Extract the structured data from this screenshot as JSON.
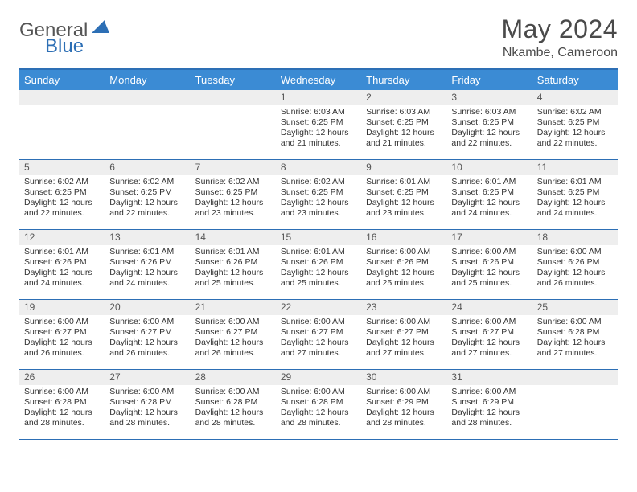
{
  "logo": {
    "word1": "General",
    "word2": "Blue"
  },
  "header": {
    "title": "May 2024",
    "location": "Nkambe, Cameroon"
  },
  "colors": {
    "header_bar": "#3b8bd4",
    "border": "#2d6fb5",
    "daynum_bg": "#eeeeee",
    "text": "#333333",
    "title_text": "#4a4a4a"
  },
  "weekdays": [
    "Sunday",
    "Monday",
    "Tuesday",
    "Wednesday",
    "Thursday",
    "Friday",
    "Saturday"
  ],
  "weeks": [
    [
      {
        "num": "",
        "sunrise": "",
        "sunset": "",
        "daylight": ""
      },
      {
        "num": "",
        "sunrise": "",
        "sunset": "",
        "daylight": ""
      },
      {
        "num": "",
        "sunrise": "",
        "sunset": "",
        "daylight": ""
      },
      {
        "num": "1",
        "sunrise": "Sunrise: 6:03 AM",
        "sunset": "Sunset: 6:25 PM",
        "daylight": "Daylight: 12 hours and 21 minutes."
      },
      {
        "num": "2",
        "sunrise": "Sunrise: 6:03 AM",
        "sunset": "Sunset: 6:25 PM",
        "daylight": "Daylight: 12 hours and 21 minutes."
      },
      {
        "num": "3",
        "sunrise": "Sunrise: 6:03 AM",
        "sunset": "Sunset: 6:25 PM",
        "daylight": "Daylight: 12 hours and 22 minutes."
      },
      {
        "num": "4",
        "sunrise": "Sunrise: 6:02 AM",
        "sunset": "Sunset: 6:25 PM",
        "daylight": "Daylight: 12 hours and 22 minutes."
      }
    ],
    [
      {
        "num": "5",
        "sunrise": "Sunrise: 6:02 AM",
        "sunset": "Sunset: 6:25 PM",
        "daylight": "Daylight: 12 hours and 22 minutes."
      },
      {
        "num": "6",
        "sunrise": "Sunrise: 6:02 AM",
        "sunset": "Sunset: 6:25 PM",
        "daylight": "Daylight: 12 hours and 22 minutes."
      },
      {
        "num": "7",
        "sunrise": "Sunrise: 6:02 AM",
        "sunset": "Sunset: 6:25 PM",
        "daylight": "Daylight: 12 hours and 23 minutes."
      },
      {
        "num": "8",
        "sunrise": "Sunrise: 6:02 AM",
        "sunset": "Sunset: 6:25 PM",
        "daylight": "Daylight: 12 hours and 23 minutes."
      },
      {
        "num": "9",
        "sunrise": "Sunrise: 6:01 AM",
        "sunset": "Sunset: 6:25 PM",
        "daylight": "Daylight: 12 hours and 23 minutes."
      },
      {
        "num": "10",
        "sunrise": "Sunrise: 6:01 AM",
        "sunset": "Sunset: 6:25 PM",
        "daylight": "Daylight: 12 hours and 24 minutes."
      },
      {
        "num": "11",
        "sunrise": "Sunrise: 6:01 AM",
        "sunset": "Sunset: 6:25 PM",
        "daylight": "Daylight: 12 hours and 24 minutes."
      }
    ],
    [
      {
        "num": "12",
        "sunrise": "Sunrise: 6:01 AM",
        "sunset": "Sunset: 6:26 PM",
        "daylight": "Daylight: 12 hours and 24 minutes."
      },
      {
        "num": "13",
        "sunrise": "Sunrise: 6:01 AM",
        "sunset": "Sunset: 6:26 PM",
        "daylight": "Daylight: 12 hours and 24 minutes."
      },
      {
        "num": "14",
        "sunrise": "Sunrise: 6:01 AM",
        "sunset": "Sunset: 6:26 PM",
        "daylight": "Daylight: 12 hours and 25 minutes."
      },
      {
        "num": "15",
        "sunrise": "Sunrise: 6:01 AM",
        "sunset": "Sunset: 6:26 PM",
        "daylight": "Daylight: 12 hours and 25 minutes."
      },
      {
        "num": "16",
        "sunrise": "Sunrise: 6:00 AM",
        "sunset": "Sunset: 6:26 PM",
        "daylight": "Daylight: 12 hours and 25 minutes."
      },
      {
        "num": "17",
        "sunrise": "Sunrise: 6:00 AM",
        "sunset": "Sunset: 6:26 PM",
        "daylight": "Daylight: 12 hours and 25 minutes."
      },
      {
        "num": "18",
        "sunrise": "Sunrise: 6:00 AM",
        "sunset": "Sunset: 6:26 PM",
        "daylight": "Daylight: 12 hours and 26 minutes."
      }
    ],
    [
      {
        "num": "19",
        "sunrise": "Sunrise: 6:00 AM",
        "sunset": "Sunset: 6:27 PM",
        "daylight": "Daylight: 12 hours and 26 minutes."
      },
      {
        "num": "20",
        "sunrise": "Sunrise: 6:00 AM",
        "sunset": "Sunset: 6:27 PM",
        "daylight": "Daylight: 12 hours and 26 minutes."
      },
      {
        "num": "21",
        "sunrise": "Sunrise: 6:00 AM",
        "sunset": "Sunset: 6:27 PM",
        "daylight": "Daylight: 12 hours and 26 minutes."
      },
      {
        "num": "22",
        "sunrise": "Sunrise: 6:00 AM",
        "sunset": "Sunset: 6:27 PM",
        "daylight": "Daylight: 12 hours and 27 minutes."
      },
      {
        "num": "23",
        "sunrise": "Sunrise: 6:00 AM",
        "sunset": "Sunset: 6:27 PM",
        "daylight": "Daylight: 12 hours and 27 minutes."
      },
      {
        "num": "24",
        "sunrise": "Sunrise: 6:00 AM",
        "sunset": "Sunset: 6:27 PM",
        "daylight": "Daylight: 12 hours and 27 minutes."
      },
      {
        "num": "25",
        "sunrise": "Sunrise: 6:00 AM",
        "sunset": "Sunset: 6:28 PM",
        "daylight": "Daylight: 12 hours and 27 minutes."
      }
    ],
    [
      {
        "num": "26",
        "sunrise": "Sunrise: 6:00 AM",
        "sunset": "Sunset: 6:28 PM",
        "daylight": "Daylight: 12 hours and 28 minutes."
      },
      {
        "num": "27",
        "sunrise": "Sunrise: 6:00 AM",
        "sunset": "Sunset: 6:28 PM",
        "daylight": "Daylight: 12 hours and 28 minutes."
      },
      {
        "num": "28",
        "sunrise": "Sunrise: 6:00 AM",
        "sunset": "Sunset: 6:28 PM",
        "daylight": "Daylight: 12 hours and 28 minutes."
      },
      {
        "num": "29",
        "sunrise": "Sunrise: 6:00 AM",
        "sunset": "Sunset: 6:28 PM",
        "daylight": "Daylight: 12 hours and 28 minutes."
      },
      {
        "num": "30",
        "sunrise": "Sunrise: 6:00 AM",
        "sunset": "Sunset: 6:29 PM",
        "daylight": "Daylight: 12 hours and 28 minutes."
      },
      {
        "num": "31",
        "sunrise": "Sunrise: 6:00 AM",
        "sunset": "Sunset: 6:29 PM",
        "daylight": "Daylight: 12 hours and 28 minutes."
      },
      {
        "num": "",
        "sunrise": "",
        "sunset": "",
        "daylight": ""
      }
    ]
  ]
}
